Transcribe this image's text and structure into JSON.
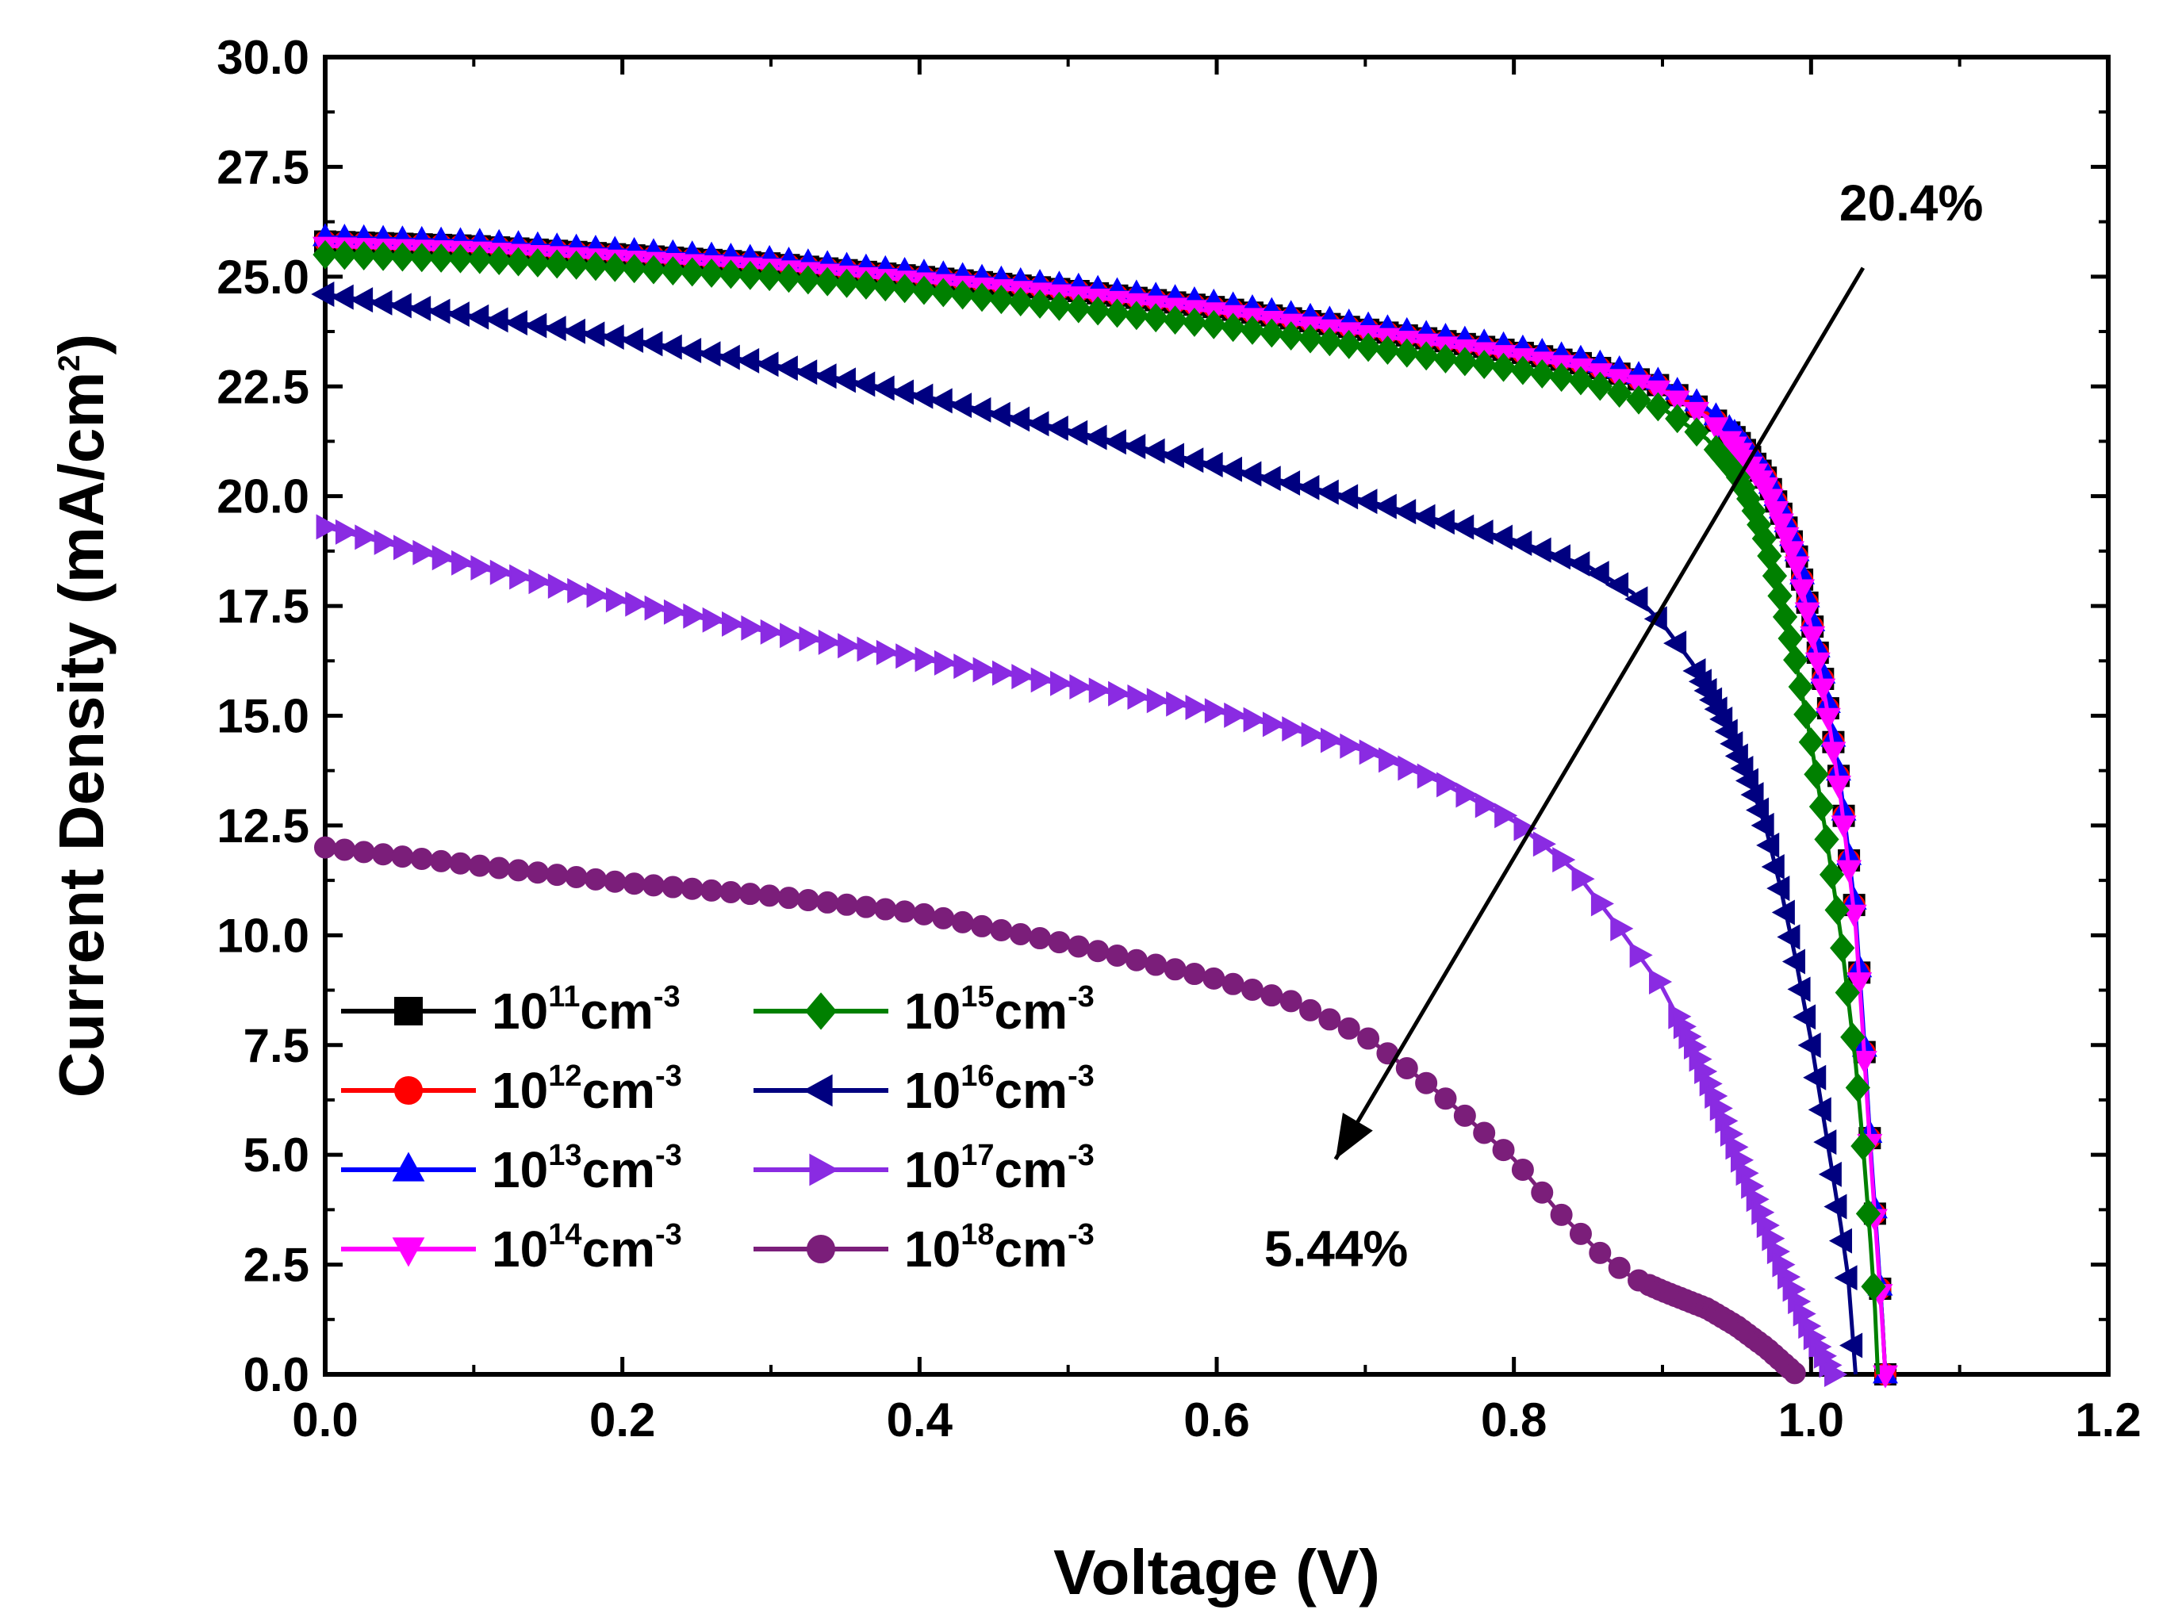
{
  "chart_data": {
    "type": "line",
    "xlabel": "Voltage (V)",
    "ylabel": "Current Density (mA/cm²)",
    "ylabel_main": "Current Density (mA/cm",
    "ylabel_sup": "2",
    "ylabel_close": ")",
    "xlim": [
      0.0,
      1.2
    ],
    "ylim": [
      0.0,
      30.0
    ],
    "xticks": [
      "0.0",
      "0.2",
      "0.4",
      "0.6",
      "0.8",
      "1.0",
      "1.2"
    ],
    "yticks": [
      "0.0",
      "2.5",
      "5.0",
      "7.5",
      "10.0",
      "12.5",
      "15.0",
      "17.5",
      "20.0",
      "22.5",
      "25.0",
      "27.5",
      "30.0"
    ],
    "legend_position": "bottom-left",
    "legend_unit": "cm",
    "legend_unit_exp": "-3",
    "series": [
      {
        "name": "10¹¹cm⁻³",
        "base": "10",
        "exp": "11",
        "color": "#000000",
        "marker": "square",
        "points": [
          [
            0,
            25.8
          ],
          [
            0.1,
            25.7
          ],
          [
            0.2,
            25.5
          ],
          [
            0.3,
            25.3
          ],
          [
            0.4,
            25.0
          ],
          [
            0.5,
            24.7
          ],
          [
            0.6,
            24.3
          ],
          [
            0.7,
            23.8
          ],
          [
            0.8,
            23.3
          ],
          [
            0.85,
            23.0
          ],
          [
            0.9,
            22.5
          ],
          [
            0.93,
            21.9
          ],
          [
            0.95,
            21.3
          ],
          [
            0.97,
            20.4
          ],
          [
            0.98,
            19.6
          ],
          [
            0.99,
            18.7
          ],
          [
            1.0,
            17.2
          ],
          [
            1.01,
            15.5
          ],
          [
            1.02,
            13.3
          ],
          [
            1.03,
            10.4
          ],
          [
            1.035,
            7.9
          ],
          [
            1.04,
            5.1
          ],
          [
            1.045,
            2.7
          ],
          [
            1.048,
            1.2
          ],
          [
            1.05,
            0
          ]
        ]
      },
      {
        "name": "10¹²cm⁻³",
        "base": "10",
        "exp": "12",
        "color": "#ff0000",
        "marker": "circle",
        "points": [
          [
            0,
            25.8
          ],
          [
            0.1,
            25.7
          ],
          [
            0.2,
            25.5
          ],
          [
            0.3,
            25.3
          ],
          [
            0.4,
            25.0
          ],
          [
            0.5,
            24.7
          ],
          [
            0.6,
            24.3
          ],
          [
            0.7,
            23.8
          ],
          [
            0.8,
            23.3
          ],
          [
            0.85,
            23.0
          ],
          [
            0.9,
            22.5
          ],
          [
            0.93,
            21.9
          ],
          [
            0.95,
            21.3
          ],
          [
            0.97,
            20.4
          ],
          [
            0.98,
            19.6
          ],
          [
            0.99,
            18.7
          ],
          [
            1.0,
            17.2
          ],
          [
            1.01,
            15.5
          ],
          [
            1.02,
            13.3
          ],
          [
            1.03,
            10.4
          ],
          [
            1.035,
            7.9
          ],
          [
            1.04,
            5.1
          ],
          [
            1.045,
            2.7
          ],
          [
            1.048,
            1.2
          ],
          [
            1.05,
            0
          ]
        ]
      },
      {
        "name": "10¹³cm⁻³",
        "base": "10",
        "exp": "13",
        "color": "#0000ff",
        "marker": "triangle-up",
        "points": [
          [
            0,
            25.9
          ],
          [
            0.1,
            25.8
          ],
          [
            0.2,
            25.6
          ],
          [
            0.3,
            25.4
          ],
          [
            0.4,
            25.1
          ],
          [
            0.5,
            24.8
          ],
          [
            0.6,
            24.4
          ],
          [
            0.7,
            23.9
          ],
          [
            0.8,
            23.4
          ],
          [
            0.85,
            23.1
          ],
          [
            0.9,
            22.6
          ],
          [
            0.93,
            22.0
          ],
          [
            0.95,
            21.4
          ],
          [
            0.97,
            20.5
          ],
          [
            0.98,
            19.7
          ],
          [
            0.99,
            18.8
          ],
          [
            1.0,
            17.3
          ],
          [
            1.01,
            15.6
          ],
          [
            1.02,
            13.4
          ],
          [
            1.03,
            10.5
          ],
          [
            1.035,
            8.0
          ],
          [
            1.04,
            5.2
          ],
          [
            1.045,
            2.8
          ],
          [
            1.048,
            1.2
          ],
          [
            1.05,
            0
          ]
        ]
      },
      {
        "name": "10¹⁴cm⁻³",
        "base": "10",
        "exp": "14",
        "color": "#ff00ff",
        "marker": "triangle-down",
        "points": [
          [
            0,
            25.7
          ],
          [
            0.1,
            25.6
          ],
          [
            0.2,
            25.4
          ],
          [
            0.3,
            25.2
          ],
          [
            0.4,
            24.9
          ],
          [
            0.5,
            24.6
          ],
          [
            0.6,
            24.2
          ],
          [
            0.7,
            23.7
          ],
          [
            0.8,
            23.2
          ],
          [
            0.85,
            22.9
          ],
          [
            0.9,
            22.4
          ],
          [
            0.93,
            21.8
          ],
          [
            0.95,
            21.1
          ],
          [
            0.97,
            20.2
          ],
          [
            0.98,
            19.4
          ],
          [
            0.99,
            18.5
          ],
          [
            1.0,
            17.0
          ],
          [
            1.01,
            15.3
          ],
          [
            1.02,
            13.1
          ],
          [
            1.03,
            10.2
          ],
          [
            1.035,
            7.7
          ],
          [
            1.04,
            5.0
          ],
          [
            1.045,
            2.6
          ],
          [
            1.048,
            1.1
          ],
          [
            1.05,
            0
          ]
        ]
      },
      {
        "name": "10¹⁵cm⁻³",
        "base": "10",
        "exp": "15",
        "color": "#008000",
        "marker": "diamond",
        "points": [
          [
            0,
            25.5
          ],
          [
            0.1,
            25.4
          ],
          [
            0.2,
            25.2
          ],
          [
            0.3,
            25.0
          ],
          [
            0.4,
            24.7
          ],
          [
            0.5,
            24.3
          ],
          [
            0.6,
            23.9
          ],
          [
            0.7,
            23.4
          ],
          [
            0.8,
            22.9
          ],
          [
            0.85,
            22.6
          ],
          [
            0.9,
            22.0
          ],
          [
            0.93,
            21.3
          ],
          [
            0.95,
            20.5
          ],
          [
            0.96,
            19.8
          ],
          [
            0.97,
            18.9
          ],
          [
            0.98,
            17.6
          ],
          [
            0.99,
            16.2
          ],
          [
            1.0,
            14.4
          ],
          [
            1.01,
            12.3
          ],
          [
            1.02,
            10.0
          ],
          [
            1.03,
            7.1
          ],
          [
            1.035,
            5.2
          ],
          [
            1.04,
            3.0
          ],
          [
            1.043,
            1.5
          ],
          [
            1.045,
            0
          ]
        ]
      },
      {
        "name": "10¹⁶cm⁻³",
        "base": "10",
        "exp": "16",
        "color": "#000080",
        "marker": "triangle-left",
        "points": [
          [
            0,
            24.6
          ],
          [
            0.1,
            24.1
          ],
          [
            0.2,
            23.6
          ],
          [
            0.3,
            23.0
          ],
          [
            0.4,
            22.3
          ],
          [
            0.5,
            21.5
          ],
          [
            0.6,
            20.7
          ],
          [
            0.7,
            19.9
          ],
          [
            0.8,
            19.0
          ],
          [
            0.85,
            18.4
          ],
          [
            0.88,
            17.8
          ],
          [
            0.9,
            17.1
          ],
          [
            0.92,
            16.2
          ],
          [
            0.94,
            15.0
          ],
          [
            0.96,
            13.4
          ],
          [
            0.97,
            12.4
          ],
          [
            0.98,
            11.0
          ],
          [
            0.99,
            9.4
          ],
          [
            1.0,
            7.6
          ],
          [
            1.01,
            5.5
          ],
          [
            1.02,
            3.4
          ],
          [
            1.025,
            2.2
          ],
          [
            1.03,
            0
          ]
        ]
      },
      {
        "name": "10¹⁷cm⁻³",
        "base": "10",
        "exp": "17",
        "color": "#8a2be2",
        "marker": "triangle-right",
        "points": [
          [
            0,
            19.3
          ],
          [
            0.1,
            18.4
          ],
          [
            0.2,
            17.6
          ],
          [
            0.3,
            16.9
          ],
          [
            0.4,
            16.3
          ],
          [
            0.5,
            15.7
          ],
          [
            0.6,
            15.1
          ],
          [
            0.65,
            14.7
          ],
          [
            0.7,
            14.2
          ],
          [
            0.75,
            13.5
          ],
          [
            0.8,
            12.6
          ],
          [
            0.84,
            11.5
          ],
          [
            0.87,
            10.2
          ],
          [
            0.9,
            8.8
          ],
          [
            0.92,
            7.5
          ],
          [
            0.94,
            5.9
          ],
          [
            0.96,
            4.2
          ],
          [
            0.98,
            2.5
          ],
          [
            1.0,
            0.9
          ],
          [
            1.015,
            0
          ]
        ]
      },
      {
        "name": "10¹⁸cm⁻³",
        "base": "10",
        "exp": "18",
        "color": "#7b1e7a",
        "marker": "circle",
        "points": [
          [
            0,
            12.0
          ],
          [
            0.1,
            11.6
          ],
          [
            0.2,
            11.2
          ],
          [
            0.3,
            10.9
          ],
          [
            0.4,
            10.5
          ],
          [
            0.5,
            9.8
          ],
          [
            0.6,
            9.0
          ],
          [
            0.65,
            8.5
          ],
          [
            0.7,
            7.7
          ],
          [
            0.75,
            6.4
          ],
          [
            0.8,
            4.9
          ],
          [
            0.83,
            3.7
          ],
          [
            0.86,
            2.7
          ],
          [
            0.88,
            2.2
          ],
          [
            0.9,
            1.9
          ],
          [
            0.93,
            1.5
          ],
          [
            0.95,
            1.1
          ],
          [
            0.97,
            0.6
          ],
          [
            0.99,
            0
          ]
        ]
      }
    ],
    "annotations": [
      {
        "text": "20.4%"
      },
      {
        "text": "5.44%"
      }
    ],
    "arrow": {
      "from": [
        1.035,
        25.2
      ],
      "to": [
        0.68,
        4.9
      ]
    }
  }
}
